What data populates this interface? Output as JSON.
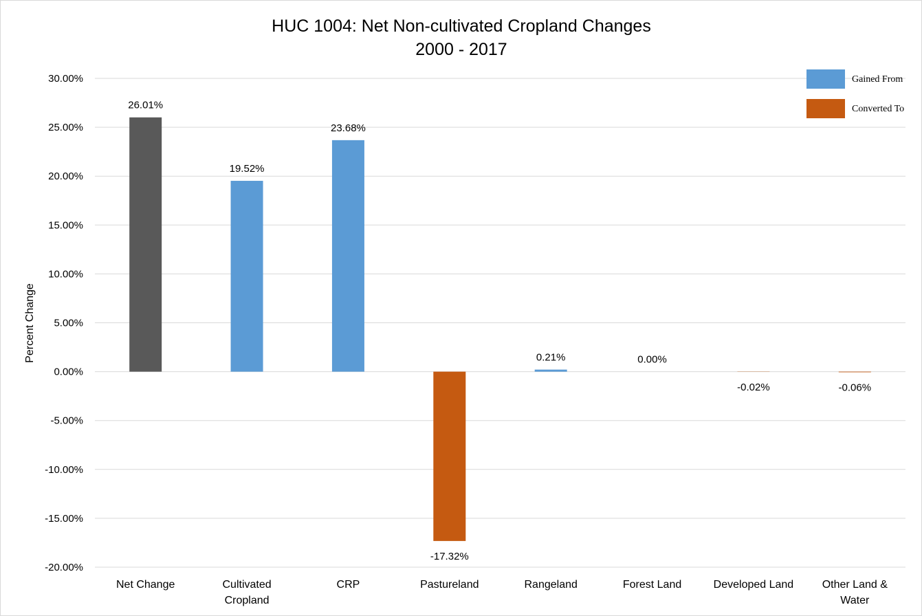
{
  "chart_data": {
    "type": "bar",
    "title_lines": [
      "HUC 1004: Net Non-cultivated Cropland Changes",
      "2000 - 2017"
    ],
    "ylabel": "Percent Change",
    "ylim": [
      -20,
      30
    ],
    "ytick_step": 5,
    "ytick_labels": [
      "30.00%",
      "25.00%",
      "20.00%",
      "15.00%",
      "10.00%",
      "5.00%",
      "0.00%",
      "-5.00%",
      "-10.00%",
      "-15.00%",
      "-20.00%"
    ],
    "categories": [
      [
        "Net Change"
      ],
      [
        "Cultivated",
        "Cropland"
      ],
      [
        "CRP"
      ],
      [
        "Pastureland"
      ],
      [
        "Rangeland"
      ],
      [
        "Forest Land"
      ],
      [
        "Developed Land"
      ],
      [
        "Other Land &",
        "Water"
      ]
    ],
    "values": [
      26.01,
      19.52,
      23.68,
      -17.32,
      0.21,
      0.0,
      -0.02,
      -0.06
    ],
    "data_labels": [
      "26.01%",
      "19.52%",
      "23.68%",
      "-17.32%",
      "0.21%",
      "0.00%",
      "-0.02%",
      "-0.06%"
    ],
    "bar_series": [
      "net",
      "gained",
      "gained",
      "converted",
      "gained",
      "gained",
      "converted",
      "converted"
    ],
    "legend": [
      {
        "key": "gained",
        "label": "Gained From"
      },
      {
        "key": "converted",
        "label": "Converted To"
      }
    ],
    "legend_position": "top-right",
    "grid": true,
    "colors": {
      "net": "#595959",
      "gained": "#5b9bd5",
      "converted": "#c55a11",
      "grid": "#d9d9d9"
    }
  }
}
